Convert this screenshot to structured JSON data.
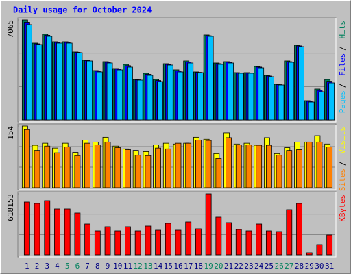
{
  "chart_data": {
    "type": "bar",
    "title": "Daily usage for October 2024",
    "title_color": "#0000ff",
    "categories": [
      "1",
      "2",
      "3",
      "4",
      "5",
      "6",
      "7",
      "8",
      "9",
      "10",
      "11",
      "12",
      "13",
      "14",
      "15",
      "16",
      "17",
      "18",
      "19",
      "20",
      "21",
      "22",
      "23",
      "24",
      "25",
      "26",
      "27",
      "28",
      "29",
      "30",
      "31"
    ],
    "category_colors": [
      "#000080",
      "#000080",
      "#000080",
      "#000080",
      "#00805c",
      "#00805c",
      "#000080",
      "#000080",
      "#000080",
      "#000080",
      "#000080",
      "#00805c",
      "#00805c",
      "#000080",
      "#000080",
      "#000080",
      "#000080",
      "#000080",
      "#00805c",
      "#00805c",
      "#000080",
      "#000080",
      "#000080",
      "#000080",
      "#000080",
      "#00805c",
      "#00805c",
      "#000080",
      "#000080",
      "#000080",
      "#000080"
    ],
    "legend_separator": "/",
    "panels": [
      {
        "ylim": [
          0,
          7065
        ],
        "yticks": [
          7065
        ],
        "series": [
          {
            "name": "Hits",
            "color": "#00805c",
            "values": [
              7065,
              5420,
              6049,
              5517,
              5517,
              4791,
              4210,
              3484,
              4113,
              3630,
              3920,
              2855,
              3291,
              2855,
              3968,
              3533,
              4162,
              3388,
              6001,
              4017,
              4113,
              3339,
              3339,
              3775,
              3146,
              2516,
              4162,
              5275,
              1355,
              2178,
              2855
            ]
          },
          {
            "name": "Files",
            "color": "#0000ff",
            "values": [
              6900,
              5370,
              5980,
              5470,
              5470,
              4770,
              4190,
              3440,
              4070,
              3590,
              3830,
              2830,
              3220,
              2780,
              3920,
              3460,
              4090,
              3360,
              5950,
              3970,
              4070,
              3320,
              3320,
              3730,
              3100,
              2490,
              4110,
              5230,
              1310,
              2080,
              2730
            ]
          },
          {
            "name": "Pages",
            "color": "#00c0ff",
            "values": [
              6727,
              5324,
              5904,
              5420,
              5420,
              4743,
              4162,
              3388,
              4017,
              3533,
              3727,
              2807,
              3146,
              2710,
              3872,
              3388,
              4017,
              3339,
              5904,
              3920,
              4017,
              3291,
              3291,
              3678,
              3049,
              2468,
              4065,
              5178,
              1258,
              1984,
              2613
            ]
          }
        ]
      },
      {
        "ylim": [
          0,
          154
        ],
        "yticks": [
          154
        ],
        "series": [
          {
            "name": "Visits",
            "color": "#ffff00",
            "values": [
              154,
              106,
              111,
              99,
              111,
              88,
              119,
              114,
              126,
              104,
              97,
              93,
              90,
              107,
              111,
              109,
              111,
              126,
              121,
              85,
              137,
              109,
              111,
              106,
              125,
              85,
              100,
              114,
              114,
              130,
              109
            ]
          },
          {
            "name": "Sites",
            "color": "#ff8000",
            "values": [
              145,
              93,
              104,
              87,
              102,
              80,
              111,
              107,
              114,
              100,
              95,
              81,
              80,
              99,
              97,
              111,
              111,
              119,
              118,
              73,
              125,
              107,
              107,
              106,
              106,
              81,
              93,
              95,
              114,
              114,
              102
            ]
          }
        ]
      },
      {
        "ylim": [
          0,
          618153
        ],
        "yticks": [
          618153
        ],
        "series": [
          {
            "name": "KBytes",
            "color": "#ff0000",
            "values": [
              534842,
              520950,
              548734,
              465382,
              465382,
              423706,
              312570,
              243110,
              284786,
              243110,
              284786,
              243110,
              291732,
              250056,
              319516,
              250056,
              333408,
              263948,
              618153,
              382030,
              326462,
              257002,
              243110,
              312570,
              243110,
              236164,
              458436,
              520950,
              20838,
              104190,
              201434
            ]
          }
        ]
      }
    ]
  }
}
